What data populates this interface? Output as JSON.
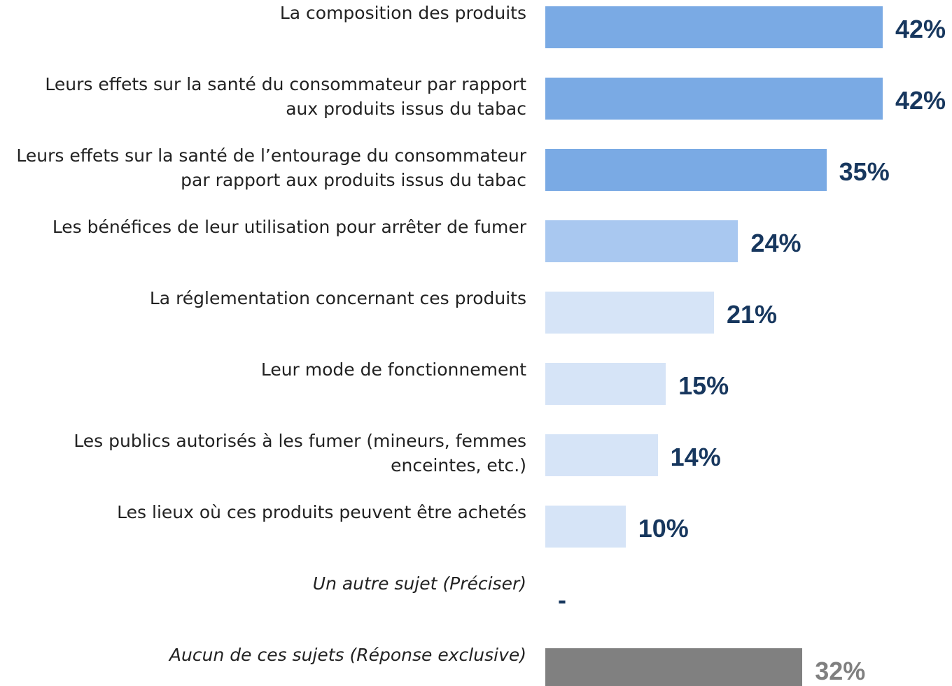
{
  "chart_data": {
    "type": "bar",
    "orientation": "horizontal",
    "categories": [
      "La composition des produits",
      "Leurs effets sur la santé du consommateur par rapport aux produits issus du tabac",
      "Leurs effets sur la santé de l’entourage du consommateur par rapport aux produits issus du tabac",
      "Les bénéfices de leur utilisation pour arrêter de fumer",
      "La réglementation concernant ces produits",
      "Leur mode de fonctionnement",
      "Les publics autorisés à les fumer (mineurs, femmes enceintes, etc.)",
      "Les lieux où ces produits peuvent être achetés",
      "Un autre sujet (Préciser)",
      "Aucun de ces sujets (Réponse exclusive)"
    ],
    "values": [
      42,
      42,
      35,
      24,
      21,
      15,
      14,
      10,
      null,
      32
    ],
    "value_labels": [
      "42%",
      "42%",
      "35%",
      "24%",
      "21%",
      "15%",
      "14%",
      "10%",
      "-",
      "32%"
    ],
    "colors": [
      "#7aaae4",
      "#7aaae4",
      "#7aaae4",
      "#a9c8f0",
      "#d6e4f7",
      "#d6e4f7",
      "#d6e4f7",
      "#d6e4f7",
      "#d6e4f7",
      "#808080"
    ],
    "value_label_colors": [
      "#17375e",
      "#17375e",
      "#17375e",
      "#17375e",
      "#17375e",
      "#17375e",
      "#17375e",
      "#17375e",
      "#17375e",
      "#808080"
    ]
  }
}
